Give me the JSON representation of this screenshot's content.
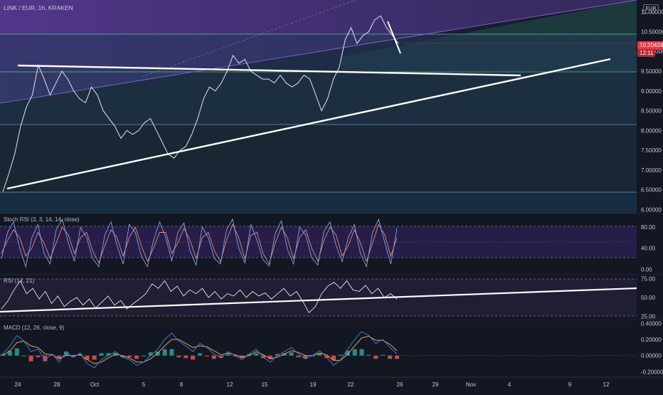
{
  "header": {
    "title": "LINK / EUR, 1h, KRAKEN",
    "currency": "EUR"
  },
  "price_badge": {
    "value": "10.20424",
    "countdown": "12:11"
  },
  "indicators": {
    "stoch_rsi": "Stoch RSI (3, 3, 14, 14, close)",
    "rsi": "RSI (14, 21)",
    "macd": "MACD (12, 26, close, 9)"
  },
  "colors": {
    "background": "#131722",
    "price_line": "#e0e3eb",
    "stoch_k": "#7aa6e8",
    "stoch_d": "#e98b6c",
    "rsi_line": "#e6e6f0",
    "macd_line": "#2f7fd8",
    "signal_line": "#f29a4c",
    "hist_up": "#26a69a",
    "hist_down": "#ef5350",
    "trendline": "#ffffff",
    "support_band": "#1e5066",
    "purple_channel": "#6a3fb3"
  },
  "chart_data": [
    {
      "type": "line",
      "title": "LINK / EUR, 1h, KRAKEN",
      "x_ticks": [
        "24",
        "28",
        "Oct",
        "5",
        "8",
        "12",
        "15",
        "19",
        "22",
        "26",
        "29",
        "Nov",
        "4",
        "9",
        "12"
      ],
      "ylim": [
        5.9,
        11.3
      ],
      "y_ticks": [
        "11.00000",
        "10.50000",
        "10.00000",
        "9.50000",
        "9.00000",
        "8.50000",
        "8.00000",
        "7.50000",
        "7.00000",
        "6.50000",
        "6.00000"
      ],
      "last_price": 10.20424,
      "horizontal_levels": [
        10.5,
        9.5,
        8.1,
        6.35
      ],
      "series": [
        {
          "values": [
            6.45,
            6.9,
            7.4,
            8.1,
            8.6,
            8.9,
            9.65,
            9.3,
            8.9,
            9.2,
            9.5,
            9.3,
            9.0,
            8.8,
            8.7,
            9.1,
            8.9,
            8.5,
            8.3,
            8.1,
            7.8,
            8.0,
            7.9,
            8.0,
            8.2,
            8.3,
            8.0,
            7.7,
            7.4,
            7.3,
            7.5,
            7.6,
            7.9,
            8.3,
            8.8,
            9.1,
            9.0,
            9.2,
            9.5,
            9.9,
            9.7,
            9.8,
            9.5,
            9.4,
            9.3,
            9.3,
            9.2,
            9.4,
            9.2,
            9.1,
            9.2,
            9.4,
            9.3,
            8.9,
            8.5,
            8.8,
            9.3,
            9.6,
            10.3,
            10.6,
            10.2,
            10.4,
            10.5,
            10.8,
            10.9,
            10.6,
            10.4,
            10.2
          ]
        }
      ]
    },
    {
      "type": "line",
      "title": "Stoch RSI (3, 3, 14, 14, close)",
      "ylim": [
        -5,
        95
      ],
      "y_ticks": [
        "80.00",
        "40.00",
        "0.00"
      ],
      "series": [
        {
          "values": [
            20,
            70,
            90,
            40,
            5,
            60,
            85,
            30,
            10,
            75,
            95,
            50,
            15,
            80,
            60,
            20,
            5,
            65,
            90,
            45,
            10,
            85,
            70,
            25,
            5,
            55,
            90,
            60,
            15,
            70,
            88,
            35,
            8,
            80,
            60,
            20,
            10,
            75,
            95,
            40,
            12,
            85,
            55,
            18,
            6,
            68,
            92,
            38,
            10,
            80,
            65,
            22,
            8,
            72,
            90,
            45,
            14,
            60,
            85,
            30,
            5,
            70,
            95,
            50,
            10,
            78
          ]
        },
        {
          "values": [
            30,
            55,
            75,
            60,
            25,
            40,
            70,
            50,
            20,
            50,
            80,
            65,
            30,
            60,
            70,
            35,
            12,
            45,
            75,
            60,
            25,
            60,
            80,
            45,
            15,
            40,
            70,
            70,
            30,
            50,
            78,
            55,
            20,
            60,
            70,
            35,
            15,
            55,
            85,
            60,
            20,
            65,
            70,
            30,
            10,
            50,
            80,
            60,
            20,
            60,
            75,
            40,
            15,
            55,
            80,
            65,
            25,
            45,
            75,
            50,
            15,
            50,
            85,
            65,
            25,
            60
          ]
        }
      ]
    },
    {
      "type": "line",
      "title": "RSI (14, 21)",
      "ylim": [
        20,
        80
      ],
      "y_ticks": [
        "75.00",
        "50.00",
        "25.00"
      ],
      "series": [
        {
          "values": [
            35,
            45,
            60,
            72,
            55,
            62,
            48,
            58,
            42,
            52,
            38,
            45,
            50,
            40,
            48,
            36,
            44,
            52,
            40,
            46,
            35,
            42,
            48,
            55,
            68,
            62,
            72,
            58,
            65,
            52,
            60,
            55,
            62,
            50,
            58,
            48,
            55,
            52,
            60,
            50,
            58,
            52,
            56,
            48,
            55,
            62,
            52,
            58,
            45,
            30,
            38,
            55,
            65,
            70,
            62,
            72,
            60,
            58,
            66,
            55,
            62,
            50,
            55,
            48
          ]
        }
      ]
    },
    {
      "type": "bar",
      "title": "MACD (12, 26, close, 9)",
      "ylim": [
        -0.25,
        0.42
      ],
      "y_ticks": [
        "0.40000",
        "0.20000",
        "0.00000",
        "-0.20000"
      ],
      "series": [
        {
          "name": "MACD",
          "values": [
            0.02,
            0.12,
            0.25,
            0.18,
            0.05,
            0.08,
            -0.05,
            0.02,
            -0.08,
            0.05,
            -0.02,
            0.03,
            -0.1,
            -0.15,
            -0.05,
            0.0,
            0.05,
            -0.02,
            -0.05,
            -0.12,
            -0.08,
            0.0,
            0.08,
            0.2,
            0.28,
            0.18,
            0.12,
            0.05,
            0.15,
            0.1,
            0.02,
            -0.02,
            0.05,
            0.0,
            -0.05,
            0.02,
            0.08,
            -0.02,
            -0.08,
            0.0,
            0.05,
            0.1,
            0.02,
            -0.04,
            0.0,
            0.06,
            -0.02,
            -0.12,
            -0.05,
            0.08,
            0.2,
            0.3,
            0.25,
            0.15,
            0.2,
            0.1,
            0.02
          ]
        },
        {
          "name": "Signal",
          "values": [
            0.0,
            0.06,
            0.16,
            0.18,
            0.12,
            0.1,
            0.02,
            0.01,
            -0.04,
            0.0,
            0.0,
            0.01,
            -0.05,
            -0.1,
            -0.08,
            -0.03,
            0.02,
            0.0,
            -0.03,
            -0.08,
            -0.08,
            -0.04,
            0.03,
            0.12,
            0.2,
            0.2,
            0.15,
            0.1,
            0.12,
            0.11,
            0.06,
            0.01,
            0.03,
            0.01,
            -0.02,
            0.0,
            0.05,
            0.01,
            -0.04,
            -0.02,
            0.02,
            0.06,
            0.04,
            0.0,
            0.0,
            0.03,
            0.01,
            -0.06,
            -0.06,
            0.02,
            0.12,
            0.22,
            0.24,
            0.19,
            0.19,
            0.14,
            0.06
          ]
        }
      ]
    }
  ]
}
